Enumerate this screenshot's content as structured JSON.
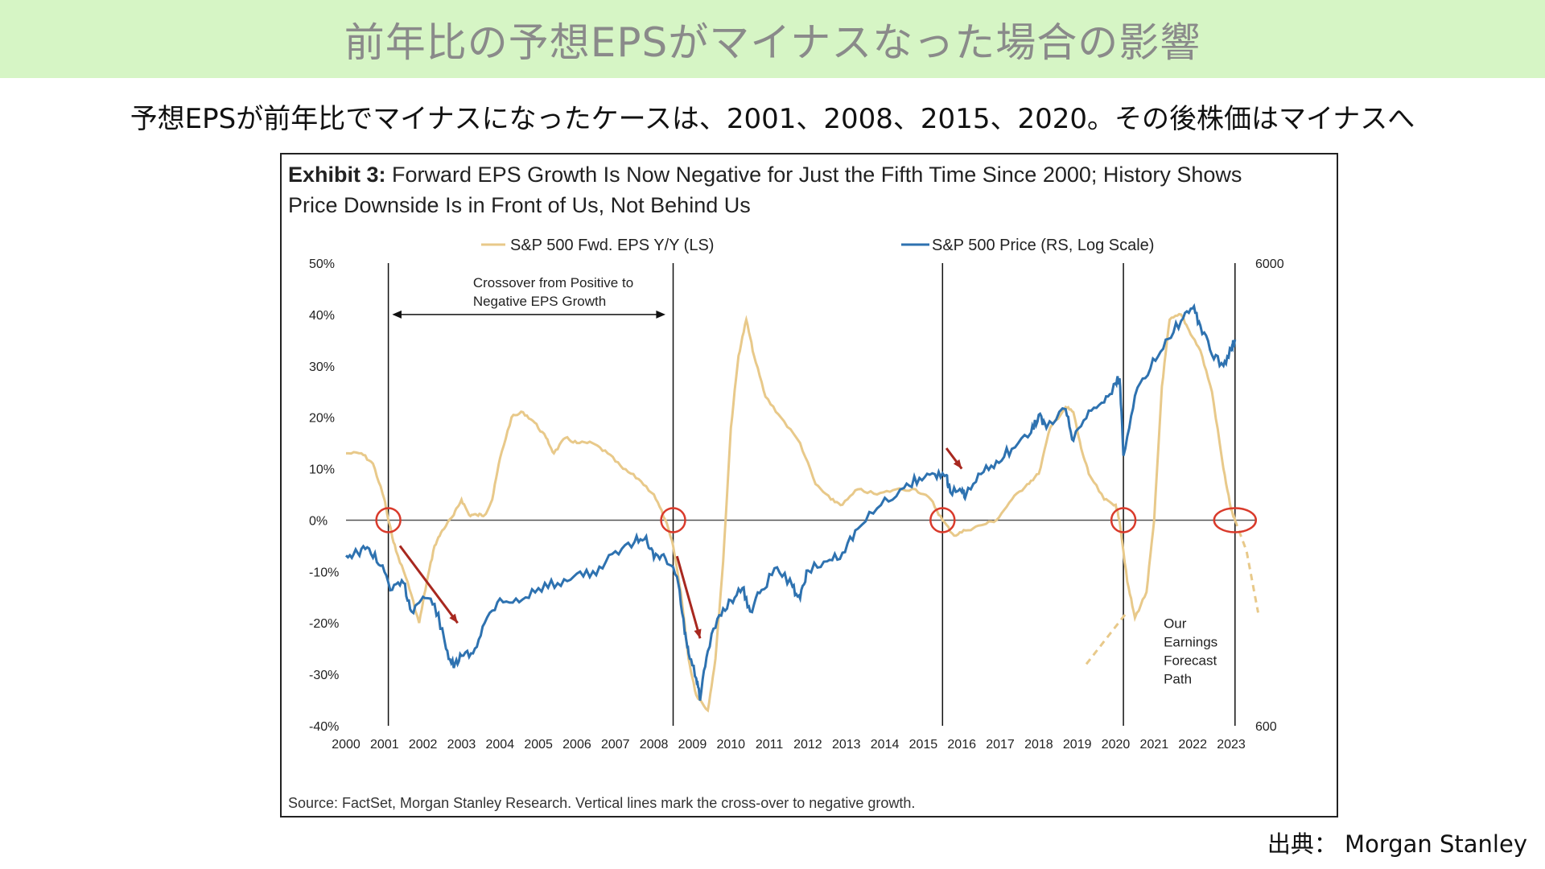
{
  "header": {
    "title": "前年比の予想EPSがマイナスなった場合の影響",
    "subtitle": "予想EPSが前年比でマイナスになったケースは、2001、2008、2015、2020。その後株価はマイナスへ"
  },
  "exhibit": {
    "label": "Exhibit 3:",
    "title_line1": "Forward EPS Growth Is Now Negative for Just the Fifth Time Since 2000; History Shows",
    "title_line2": "Price Downside Is in Front of Us, Not Behind Us"
  },
  "source": "Source: FactSet, Morgan Stanley Research. Vertical lines mark the cross-over to negative growth.",
  "credit": "出典： Morgan Stanley",
  "colors": {
    "eps": "#e8c98a",
    "price": "#2e72b0",
    "marker": "#d93a2b",
    "arrow": "#a8281f"
  },
  "chart_data": {
    "type": "line",
    "x_ticks": [
      "2000",
      "2001",
      "2002",
      "2003",
      "2004",
      "2005",
      "2006",
      "2007",
      "2008",
      "2009",
      "2010",
      "2011",
      "2012",
      "2013",
      "2014",
      "2015",
      "2016",
      "2017",
      "2018",
      "2019",
      "2020",
      "2021",
      "2022",
      "2023"
    ],
    "left_axis": {
      "ticks": [
        "50%",
        "40%",
        "30%",
        "20%",
        "10%",
        "0%",
        "-10%",
        "-20%",
        "-30%",
        "-40%"
      ],
      "ylim": [
        -40,
        50
      ]
    },
    "right_axis": {
      "ticks": [
        "6000",
        "600"
      ],
      "ylim": [
        600,
        6000
      ],
      "scale": "log"
    },
    "legend": {
      "placement": "top"
    },
    "series": [
      {
        "name": "S&P 500 Fwd. EPS Y/Y (LS)",
        "axis": "left",
        "points": [
          [
            2000.0,
            13
          ],
          [
            2000.4,
            13
          ],
          [
            2000.7,
            11
          ],
          [
            2001.0,
            4
          ],
          [
            2001.1,
            0
          ],
          [
            2001.3,
            -6
          ],
          [
            2001.6,
            -12
          ],
          [
            2001.9,
            -20
          ],
          [
            2002.1,
            -12
          ],
          [
            2002.3,
            -5
          ],
          [
            2002.5,
            -2
          ],
          [
            2002.8,
            1
          ],
          [
            2003.0,
            4
          ],
          [
            2003.2,
            1
          ],
          [
            2003.4,
            1
          ],
          [
            2003.6,
            1
          ],
          [
            2003.8,
            4
          ],
          [
            2004.0,
            12
          ],
          [
            2004.3,
            20
          ],
          [
            2004.6,
            21
          ],
          [
            2004.9,
            19
          ],
          [
            2005.2,
            16
          ],
          [
            2005.4,
            13
          ],
          [
            2005.7,
            16
          ],
          [
            2006.0,
            15
          ],
          [
            2006.4,
            15
          ],
          [
            2006.8,
            13
          ],
          [
            2007.2,
            10
          ],
          [
            2007.6,
            8
          ],
          [
            2008.0,
            5
          ],
          [
            2008.3,
            0
          ],
          [
            2008.5,
            -5
          ],
          [
            2008.7,
            -14
          ],
          [
            2008.9,
            -27
          ],
          [
            2009.1,
            -34
          ],
          [
            2009.4,
            -37
          ],
          [
            2009.6,
            -27
          ],
          [
            2009.8,
            -8
          ],
          [
            2010.0,
            18
          ],
          [
            2010.2,
            32
          ],
          [
            2010.4,
            39
          ],
          [
            2010.6,
            32
          ],
          [
            2010.9,
            24
          ],
          [
            2011.3,
            20
          ],
          [
            2011.8,
            15
          ],
          [
            2012.2,
            7
          ],
          [
            2012.6,
            4
          ],
          [
            2012.9,
            3
          ],
          [
            2013.3,
            6
          ],
          [
            2013.8,
            5
          ],
          [
            2014.3,
            6
          ],
          [
            2014.8,
            6
          ],
          [
            2015.2,
            4
          ],
          [
            2015.5,
            0
          ],
          [
            2015.8,
            -3
          ],
          [
            2016.1,
            -2
          ],
          [
            2016.5,
            -1
          ],
          [
            2016.9,
            0
          ],
          [
            2017.3,
            4
          ],
          [
            2017.7,
            7
          ],
          [
            2018.0,
            9
          ],
          [
            2018.3,
            18
          ],
          [
            2018.7,
            22
          ],
          [
            2018.9,
            21
          ],
          [
            2019.1,
            14
          ],
          [
            2019.3,
            9
          ],
          [
            2019.7,
            4
          ],
          [
            2020.0,
            3
          ],
          [
            2020.1,
            0
          ],
          [
            2020.3,
            -12
          ],
          [
            2020.5,
            -19
          ],
          [
            2020.8,
            -14
          ],
          [
            2021.0,
            0
          ],
          [
            2021.2,
            26
          ],
          [
            2021.4,
            39
          ],
          [
            2021.7,
            40
          ],
          [
            2021.9,
            37
          ],
          [
            2022.2,
            33
          ],
          [
            2022.5,
            25
          ],
          [
            2022.8,
            10
          ],
          [
            2023.0,
            2
          ],
          [
            2023.1,
            0
          ]
        ]
      },
      {
        "name": "S&P 500 Price (RS, Log Scale)",
        "axis": "right",
        "points": [
          [
            2000.0,
            1400
          ],
          [
            2000.3,
            1420
          ],
          [
            2000.6,
            1450
          ],
          [
            2000.9,
            1330
          ],
          [
            2001.2,
            1180
          ],
          [
            2001.5,
            1220
          ],
          [
            2001.7,
            1060
          ],
          [
            2002.0,
            1140
          ],
          [
            2002.3,
            1100
          ],
          [
            2002.6,
            880
          ],
          [
            2002.8,
            800
          ],
          [
            2003.0,
            850
          ],
          [
            2003.3,
            860
          ],
          [
            2003.6,
            1000
          ],
          [
            2004.0,
            1130
          ],
          [
            2004.5,
            1110
          ],
          [
            2005.0,
            1190
          ],
          [
            2005.5,
            1220
          ],
          [
            2006.0,
            1280
          ],
          [
            2006.5,
            1270
          ],
          [
            2007.0,
            1430
          ],
          [
            2007.5,
            1500
          ],
          [
            2007.8,
            1540
          ],
          [
            2008.0,
            1380
          ],
          [
            2008.3,
            1380
          ],
          [
            2008.6,
            1260
          ],
          [
            2008.8,
            950
          ],
          [
            2008.9,
            860
          ],
          [
            2009.1,
            760
          ],
          [
            2009.2,
            680
          ],
          [
            2009.4,
            870
          ],
          [
            2009.7,
            1040
          ],
          [
            2010.0,
            1120
          ],
          [
            2010.3,
            1190
          ],
          [
            2010.5,
            1060
          ],
          [
            2010.8,
            1180
          ],
          [
            2011.2,
            1320
          ],
          [
            2011.6,
            1200
          ],
          [
            2011.8,
            1130
          ],
          [
            2012.0,
            1300
          ],
          [
            2012.5,
            1360
          ],
          [
            2012.9,
            1420
          ],
          [
            2013.3,
            1600
          ],
          [
            2013.9,
            1800
          ],
          [
            2014.5,
            1960
          ],
          [
            2014.9,
            2060
          ],
          [
            2015.3,
            2100
          ],
          [
            2015.6,
            2090
          ],
          [
            2015.7,
            1920
          ],
          [
            2016.0,
            1920
          ],
          [
            2016.1,
            1880
          ],
          [
            2016.5,
            2100
          ],
          [
            2016.9,
            2240
          ],
          [
            2017.3,
            2380
          ],
          [
            2017.8,
            2580
          ],
          [
            2018.0,
            2820
          ],
          [
            2018.2,
            2640
          ],
          [
            2018.7,
            2900
          ],
          [
            2018.9,
            2480
          ],
          [
            2019.3,
            2880
          ],
          [
            2019.7,
            3000
          ],
          [
            2020.0,
            3300
          ],
          [
            2020.1,
            3380
          ],
          [
            2020.2,
            2300
          ],
          [
            2020.5,
            3100
          ],
          [
            2020.9,
            3550
          ],
          [
            2021.3,
            4100
          ],
          [
            2021.7,
            4500
          ],
          [
            2022.0,
            4790
          ],
          [
            2022.2,
            4400
          ],
          [
            2022.5,
            3800
          ],
          [
            2022.8,
            3600
          ],
          [
            2023.0,
            3900
          ],
          [
            2023.1,
            4100
          ]
        ]
      }
    ],
    "crossover_years": [
      2001.1,
      2008.5,
      2015.5,
      2020.2,
      2023.1
    ],
    "forecast_path": [
      [
        2023.1,
        0
      ],
      [
        2023.4,
        -6
      ],
      [
        2023.7,
        -18
      ]
    ],
    "annotations": {
      "crossover_label_line1": "Crossover from Positive to",
      "crossover_label_line2": "Negative EPS Growth",
      "forecast_label": [
        "Our",
        "Earnings",
        "Forecast",
        "Path"
      ]
    }
  }
}
